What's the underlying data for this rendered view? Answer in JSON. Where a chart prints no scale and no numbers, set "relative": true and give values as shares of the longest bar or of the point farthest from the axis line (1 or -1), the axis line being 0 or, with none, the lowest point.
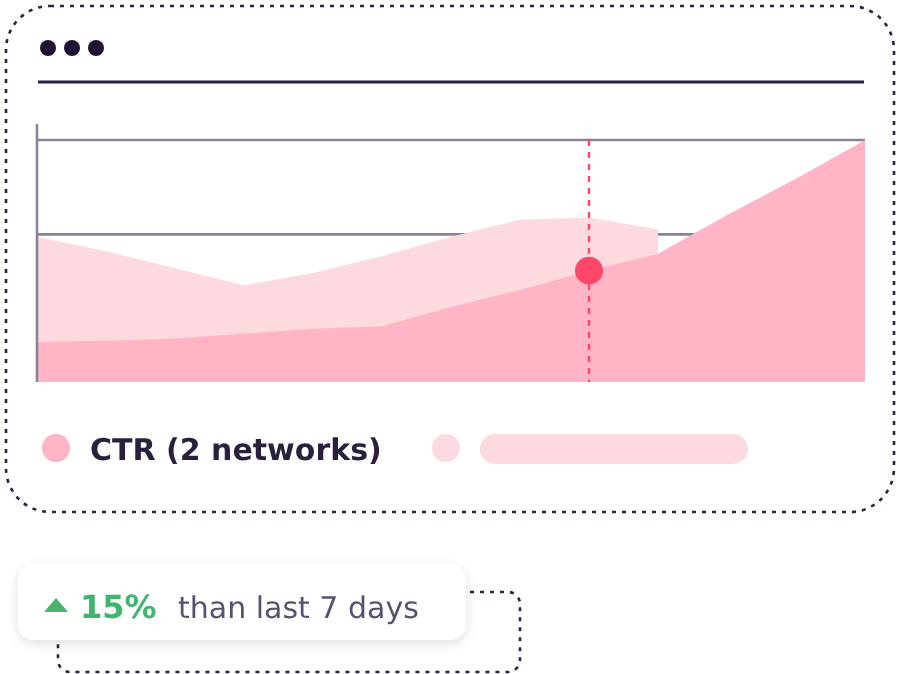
{
  "chart_data": {
    "type": "area",
    "relative": true,
    "categories": [
      null,
      null,
      null,
      null,
      null,
      null,
      null,
      null,
      null,
      null,
      null,
      null,
      null
    ],
    "series": [
      {
        "color": "#fdd9e0",
        "values": [
          0.6,
          0.54,
          0.47,
          0.4,
          0.45,
          0.52,
          0.6,
          0.67,
          0.68,
          0.63,
          null,
          null,
          null
        ]
      },
      {
        "name": "CTR (2 networks)",
        "color": "#ffb5c5",
        "values": [
          0.165,
          0.17,
          0.18,
          0.2,
          0.22,
          0.23,
          0.31,
          0.38,
          0.46,
          0.53,
          0.69,
          0.84,
          1
        ]
      }
    ],
    "ref_lines": [
      {
        "axis": "y",
        "value": 1,
        "color": "#8a819a"
      },
      {
        "axis": "y",
        "value": 0.61,
        "color": "#8a819a"
      }
    ],
    "legend": "bottom",
    "annotations": [
      "15%",
      "than last 7 days"
    ]
  }
}
